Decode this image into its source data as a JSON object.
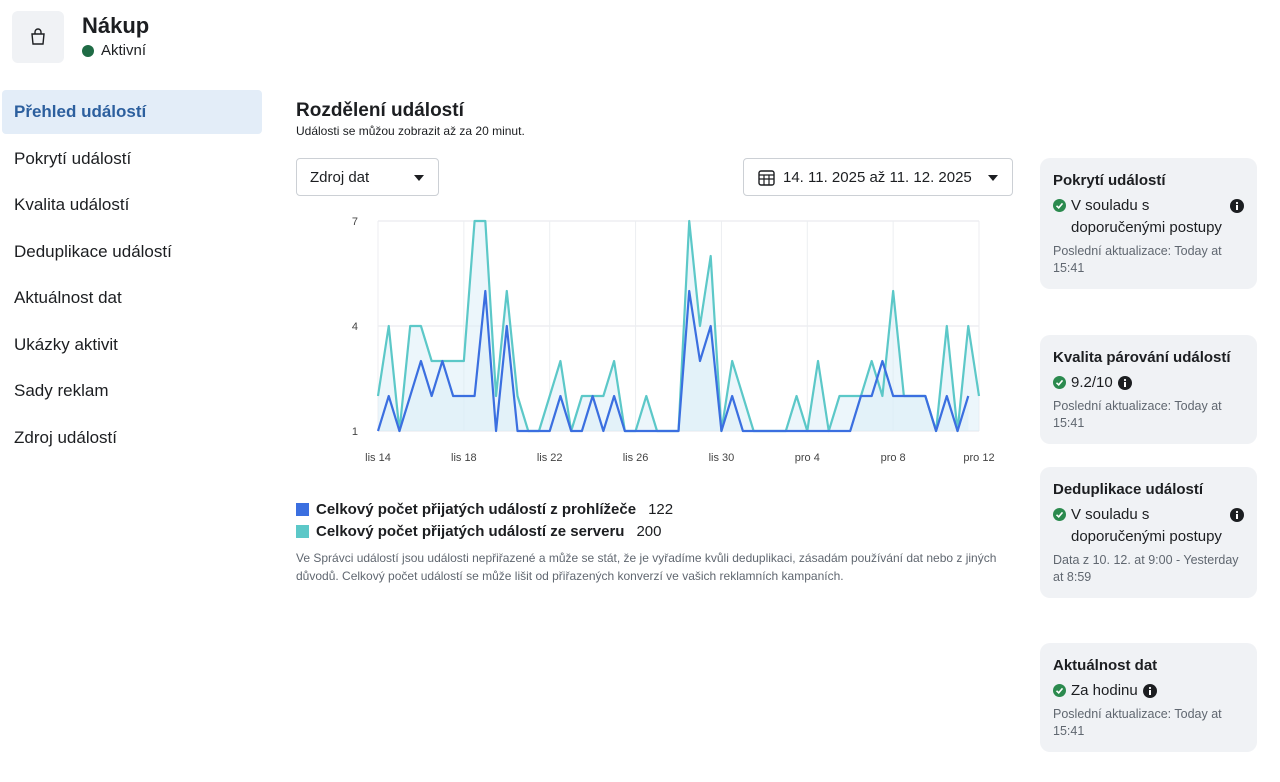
{
  "header": {
    "title": "Nákup",
    "status": "Aktivní"
  },
  "nav": {
    "items": [
      "Přehled událostí",
      "Pokrytí událostí",
      "Kvalita událostí",
      "Deduplikace událostí",
      "Aktuálnost dat",
      "Ukázky aktivit",
      "Sady reklam",
      "Zdroj událostí"
    ],
    "active": 0
  },
  "main": {
    "title": "Rozdělení událostí",
    "subtitle": "Události se můžou zobrazit až za 20 minut.",
    "source_filter": "Zdroj dat",
    "date_range": "14. 11. 2025 až 11. 12. 2025"
  },
  "chart_data": {
    "type": "line",
    "categories": [
      "lis 14",
      null,
      null,
      null,
      null,
      null,
      null,
      null,
      "lis 18",
      null,
      null,
      null,
      null,
      null,
      null,
      null,
      "lis 22",
      null,
      null,
      null,
      null,
      null,
      null,
      null,
      "lis 26",
      null,
      null,
      null,
      null,
      null,
      null,
      null,
      "lis 30",
      null,
      null,
      null,
      null,
      null,
      null,
      null,
      "pro 4",
      null,
      null,
      null,
      null,
      null,
      null,
      null,
      "pro 8",
      null,
      null,
      null,
      null,
      null,
      null,
      null,
      "pro 12"
    ],
    "series": [
      {
        "name": "Celkový počet přijatých událostí z prohlížeče",
        "total": 122,
        "color": "#3b6fe0",
        "values": [
          1,
          2,
          1,
          2,
          3,
          2,
          3,
          2,
          2,
          2,
          5,
          1,
          4,
          1,
          1,
          1,
          1,
          2,
          1,
          1,
          2,
          1,
          2,
          1,
          1,
          1,
          1,
          1,
          1,
          5,
          3,
          4,
          1,
          2,
          1,
          1,
          1,
          1,
          1,
          1,
          1,
          1,
          1,
          1,
          1,
          2,
          2,
          3,
          2,
          2,
          2,
          2,
          1,
          2,
          1,
          2,
          null
        ]
      },
      {
        "name": "Celkový počet přijatých událostí ze serveru",
        "total": 200,
        "color": "#5cc8c8",
        "values": [
          2,
          4,
          1,
          4,
          4,
          3,
          3,
          3,
          3,
          7,
          7,
          2,
          5,
          2,
          1,
          1,
          2,
          3,
          1,
          2,
          2,
          2,
          3,
          1,
          1,
          2,
          1,
          1,
          1,
          7,
          4,
          6,
          1,
          3,
          2,
          1,
          1,
          1,
          1,
          2,
          1,
          3,
          1,
          2,
          2,
          2,
          3,
          2,
          5,
          2,
          2,
          2,
          1,
          4,
          1,
          4,
          2
        ]
      }
    ],
    "ylim": [
      1,
      7
    ],
    "yticks": [
      1,
      4,
      7
    ],
    "grid": true,
    "area": true
  },
  "footnote": "Ve Správci událostí jsou události nepřiřazené a může se stát, že je vyřadíme kvůli deduplikaci, zásadám používání dat nebo z jiných důvodů. Celkový počet událostí se může lišit od přiřazených konverzí ve vašich reklamních kampaních.",
  "cards": [
    {
      "title": "Pokrytí událostí",
      "status": "V souladu s doporučenými postupy",
      "detail": "Poslední aktualizace: Today at 15:41"
    },
    {
      "title": "Kvalita párování událostí",
      "status": "9.2/10",
      "detail": "Poslední aktualizace: Today at 15:41"
    },
    {
      "title": "Deduplikace událostí",
      "status": "V souladu s doporučenými postupy",
      "detail": "Data z 10. 12. at 9:00 - Yesterday at 8:59"
    },
    {
      "title": "Aktuálnost dat",
      "status": "Za hodinu",
      "detail": "Poslední aktualizace: Today at 15:41"
    }
  ]
}
